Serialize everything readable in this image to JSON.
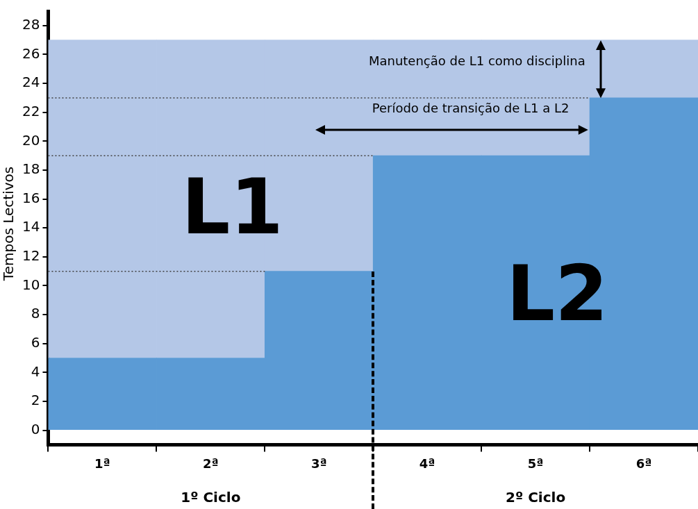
{
  "chart_data": {
    "type": "bar",
    "stacked": true,
    "ylabel": "Tempos Lectivos",
    "categories": [
      "1ª",
      "2ª",
      "3ª",
      "4ª",
      "5ª",
      "6ª"
    ],
    "series": [
      {
        "color": "#5b9bd5",
        "values": [
          5,
          5,
          11,
          19,
          19,
          23
        ]
      },
      {
        "color": "#b4c7e7",
        "values": [
          22,
          22,
          16,
          8,
          8,
          4
        ]
      }
    ],
    "ylim": [
      -1,
      29
    ],
    "yticks": [
      0,
      2,
      4,
      6,
      8,
      10,
      12,
      14,
      16,
      18,
      20,
      22,
      24,
      26,
      28
    ],
    "ref_lines": [
      {
        "axis": "y",
        "value": 11,
        "line_style": "dotted",
        "color": "#404040"
      },
      {
        "axis": "y",
        "value": 19,
        "line_style": "dotted",
        "color": "#404040"
      },
      {
        "axis": "y",
        "value": 23,
        "line_style": "dotted",
        "color": "#404040"
      }
    ],
    "annotations": [
      "Período de transição de L1 a L2",
      "Manutenção de L1 como disciplina",
      "1º Ciclo",
      "2º Ciclo",
      "L1",
      "L2"
    ],
    "grid": false
  }
}
